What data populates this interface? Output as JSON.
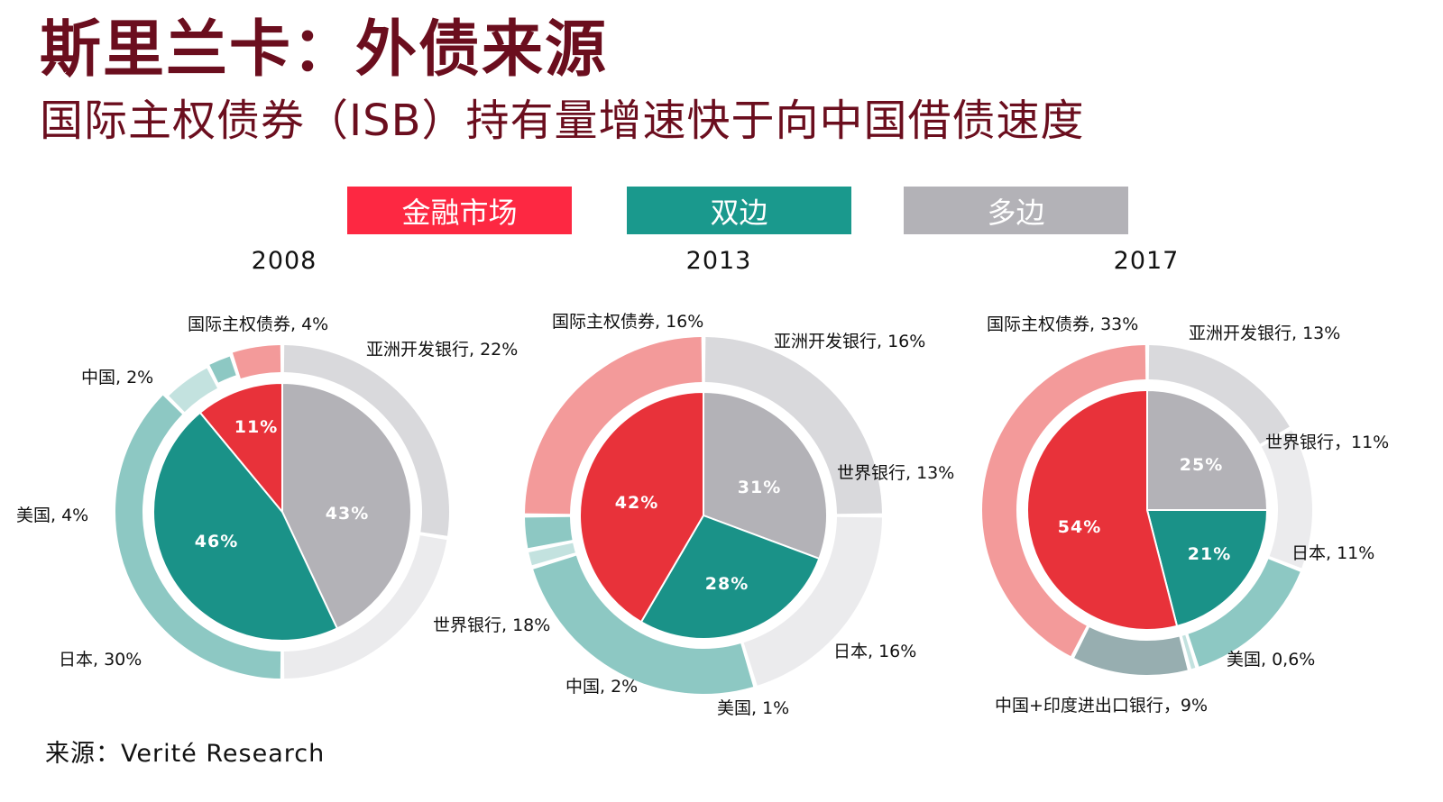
{
  "title": "斯里兰卡：外债来源",
  "subtitle": "国际主权债券（ISB）持有量增速快于向中国借债速度",
  "source": "来源：Verité Research",
  "colors": {
    "title": "#6b0e1e",
    "market": "#e8323a",
    "market_light": "#f39a9a",
    "bilateral": "#1a9288",
    "bilateral_light": "#8dc8c3",
    "multilateral": "#b3b2b7",
    "multilateral_light": "#d9d9dc",
    "multilateral_lighter": "#ebebed",
    "china_india": "#97aeb0"
  },
  "chart_data": {
    "type": "pie",
    "legend": [
      {
        "label": "金融市场",
        "color": "#fd2842"
      },
      {
        "label": "双边",
        "color": "#1a998d"
      },
      {
        "label": "多边",
        "color": "#b3b2b7"
      }
    ],
    "legend_placement": "top",
    "charts": [
      {
        "year": "2008",
        "inner": [
          {
            "name": "多边",
            "value": 43,
            "label": "43%"
          },
          {
            "name": "双边",
            "value": 46,
            "label": "46%"
          },
          {
            "name": "金融市场",
            "value": 11,
            "label": "11%"
          }
        ],
        "outer": [
          {
            "name": "亚洲开发银行",
            "value": 22,
            "group": "多边",
            "label": "亚洲开发银行, 22%"
          },
          {
            "name": "世界银行",
            "value": 18,
            "group": "多边",
            "label": "世界银行, 18%"
          },
          {
            "name": "日本",
            "value": 30,
            "group": "双边",
            "label": "日本, 30%"
          },
          {
            "name": "美国",
            "value": 4,
            "group": "双边",
            "label": "美国, 4%"
          },
          {
            "name": "中国",
            "value": 2,
            "group": "双边",
            "label": "中国, 2%"
          },
          {
            "name": "国际主权债券",
            "value": 4,
            "group": "金融市场",
            "label": "国际主权债券, 4%"
          }
        ]
      },
      {
        "year": "2013",
        "inner": [
          {
            "name": "多边",
            "value": 31,
            "label": "31%"
          },
          {
            "name": "双边",
            "value": 28,
            "label": "28%"
          },
          {
            "name": "金融市场",
            "value": 42,
            "label": "42%"
          }
        ],
        "outer": [
          {
            "name": "亚洲开发银行",
            "value": 16,
            "group": "多边",
            "label": "亚洲开发银行, 16%"
          },
          {
            "name": "世界银行",
            "value": 13,
            "group": "多边",
            "label": "世界银行, 13%"
          },
          {
            "name": "日本",
            "value": 16,
            "group": "双边",
            "label": "日本, 16%"
          },
          {
            "name": "美国",
            "value": 1,
            "group": "双边",
            "label": "美国, 1%"
          },
          {
            "name": "中国",
            "value": 2,
            "group": "双边",
            "label": "中国, 2%"
          },
          {
            "name": "国际主权债券",
            "value": 16,
            "group": "金融市场",
            "label": "国际主权债券, 16%"
          }
        ]
      },
      {
        "year": "2017",
        "inner": [
          {
            "name": "多边",
            "value": 25,
            "label": "25%"
          },
          {
            "name": "双边",
            "value": 21,
            "label": "21%"
          },
          {
            "name": "金融市场",
            "value": 54,
            "label": "54%"
          }
        ],
        "outer": [
          {
            "name": "亚洲开发银行",
            "value": 13,
            "group": "多边",
            "label": "亚洲开发银行, 13%"
          },
          {
            "name": "世界银行",
            "value": 11,
            "group": "多边",
            "label": "世界银行，11%"
          },
          {
            "name": "日本",
            "value": 11,
            "group": "双边",
            "label": "日本, 11%"
          },
          {
            "name": "美国",
            "value": 0.6,
            "group": "双边",
            "label": "美国, 0,6%"
          },
          {
            "name": "中国+印度进出口银行",
            "value": 9,
            "group": "双边",
            "label": "中国+印度进出口银行，9%"
          },
          {
            "name": "国际主权债券",
            "value": 33,
            "group": "金融市场",
            "label": "国际主权债券, 33%"
          }
        ]
      }
    ]
  }
}
